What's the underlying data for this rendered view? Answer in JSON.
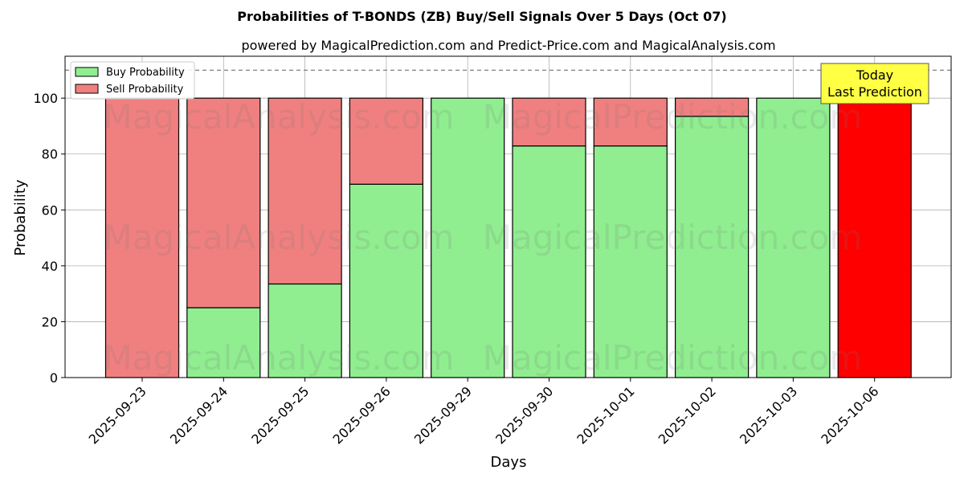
{
  "chart_data": {
    "type": "bar",
    "stacked": true,
    "title": "Probabilities of T-BONDS (ZB) Buy/Sell Signals Over 5 Days (Oct 07)",
    "subtitle": "powered by MagicalPrediction.com and Predict-Price.com and MagicalAnalysis.com",
    "xlabel": "Days",
    "ylabel": "Probability",
    "ylim": [
      0,
      115
    ],
    "yticks": [
      0,
      20,
      40,
      60,
      80,
      100
    ],
    "grid": true,
    "legend_position": "top-left",
    "reference_line": 110,
    "categories": [
      "2025-09-23",
      "2025-09-24",
      "2025-09-25",
      "2025-09-26",
      "2025-09-29",
      "2025-09-30",
      "2025-10-01",
      "2025-10-02",
      "2025-10-03",
      "2025-10-06"
    ],
    "series": [
      {
        "name": "Buy Probability",
        "color": "#90ee90",
        "values": [
          0,
          25,
          33.5,
          69.2,
          100,
          82.9,
          82.9,
          93.5,
          100,
          0
        ]
      },
      {
        "name": "Sell Probability",
        "color": "#f08080",
        "values": [
          100,
          75,
          66.5,
          30.8,
          0,
          17.1,
          17.1,
          6.5,
          0,
          100
        ]
      }
    ],
    "highlight": {
      "index": 9,
      "color": "#ff0000"
    },
    "annotation": {
      "lines": [
        "Today",
        "Last Prediction"
      ],
      "background": "#ffff44"
    },
    "watermarks": [
      "MagicalAnalysis.com",
      "MagicalPrediction.com"
    ]
  }
}
